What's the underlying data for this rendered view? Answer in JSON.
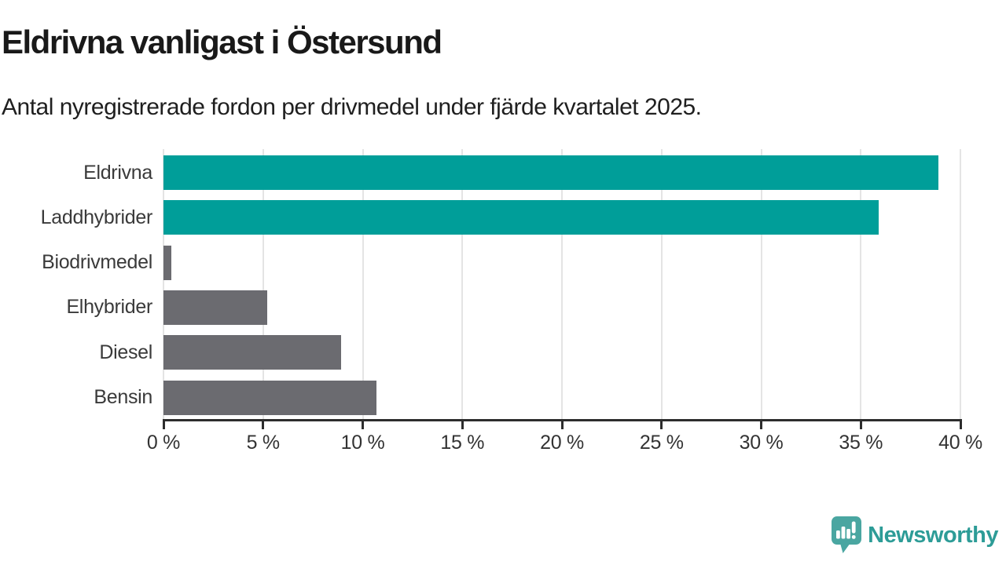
{
  "header": {
    "title": "Eldrivna vanligast i Östersund",
    "subtitle": "Antal nyregistrerade fordon per drivmedel under fjärde kvartalet 2025."
  },
  "chart_data": {
    "type": "bar",
    "orientation": "horizontal",
    "title": "Eldrivna vanligast i Östersund",
    "subtitle": "Antal nyregistrerade fordon per drivmedel under fjärde kvartalet 2025.",
    "categories": [
      "Eldrivna",
      "Laddhybrider",
      "Biodrivmedel",
      "Elhybrider",
      "Diesel",
      "Bensin"
    ],
    "values": [
      38.9,
      35.9,
      0.4,
      5.2,
      8.9,
      10.7
    ],
    "unit": "%",
    "xlabel": "",
    "ylabel": "",
    "xlim": [
      0,
      40
    ],
    "xticks": [
      0,
      5,
      10,
      15,
      20,
      25,
      30,
      35,
      40
    ],
    "xtick_labels": [
      "0 %",
      "5 %",
      "10 %",
      "15 %",
      "20 %",
      "25 %",
      "30 %",
      "35 %",
      "40 %"
    ],
    "grid": true,
    "legend_position": "none",
    "bar_colors": [
      "#009e99",
      "#009e99",
      "#6b6b70",
      "#6b6b70",
      "#6b6b70",
      "#6b6b70"
    ]
  },
  "colors": {
    "bar_teal": "#009e99",
    "bar_gray": "#6b6b70",
    "gridline": "#e4e4e4",
    "axis": "#2d2d2d",
    "title_text": "#191919",
    "label_text": "#3a3a3a",
    "brand_teal": "#2d9c97",
    "logo_icon_teal": "#4aa6a1"
  },
  "footer": {
    "brand": "Newsworthy",
    "logo_icon": "newsworthy-speech-bubble-bar-chart-icon"
  }
}
